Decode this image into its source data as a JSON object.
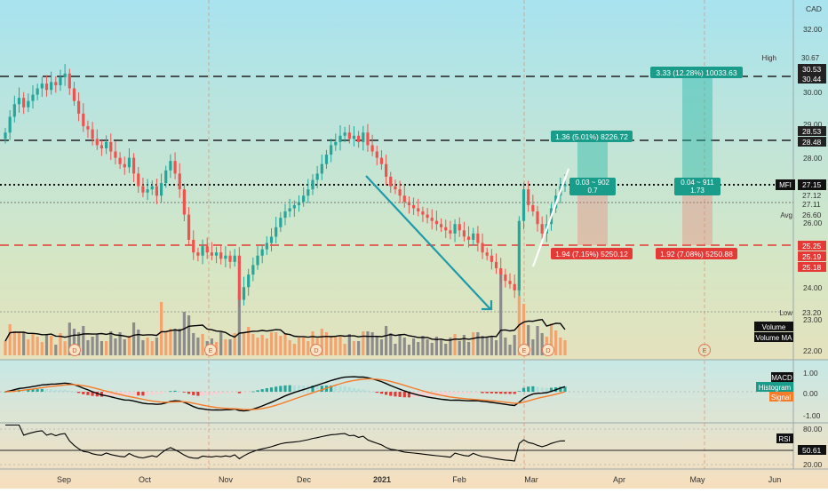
{
  "chart_data": [
    {
      "type": "candlestick",
      "currency": "CAD",
      "y_axis_ticks": [
        "32.00",
        "30.00",
        "29.00",
        "28.00",
        "26.00",
        "24.00",
        "23.00",
        "22.00"
      ],
      "x_axis_ticks": [
        "Sep",
        "Oct",
        "Nov",
        "Dec",
        "2021",
        "Feb",
        "Mar",
        "Apr",
        "May",
        "Jun"
      ],
      "ylim": [
        21.6,
        33.0
      ],
      "closes": [
        28.8,
        29.3,
        29.7,
        29.9,
        29.6,
        29.8,
        30.0,
        30.2,
        30.35,
        30.15,
        30.4,
        30.3,
        30.55,
        30.67,
        30.2,
        29.8,
        29.4,
        29.0,
        28.9,
        28.6,
        28.4,
        28.3,
        28.5,
        28.2,
        28.0,
        27.8,
        27.7,
        28.0,
        27.5,
        27.1,
        26.9,
        27.0,
        27.1,
        26.8,
        27.2,
        27.6,
        27.9,
        27.5,
        27.0,
        26.2,
        25.4,
        25.0,
        24.9,
        25.2,
        25.0,
        24.9,
        25.0,
        24.8,
        24.9,
        24.7,
        24.9,
        23.5,
        23.9,
        24.3,
        24.6,
        24.9,
        25.1,
        25.3,
        25.5,
        25.8,
        26.1,
        26.3,
        26.4,
        26.5,
        26.6,
        26.8,
        27.0,
        27.3,
        27.5,
        27.8,
        28.1,
        28.4,
        28.5,
        28.7,
        28.8,
        28.6,
        28.7,
        28.5,
        28.8,
        28.4,
        28.2,
        28.0,
        27.8,
        27.4,
        27.1,
        27.0,
        26.8,
        26.6,
        26.5,
        26.4,
        26.3,
        26.2,
        26.1,
        26.0,
        25.9,
        25.8,
        25.7,
        25.6,
        25.9,
        25.7,
        25.5,
        25.4,
        25.6,
        25.3,
        25.0,
        24.9,
        24.7,
        24.5,
        24.3,
        24.1,
        24.0,
        23.8,
        26.0,
        27.0,
        26.5,
        26.3,
        25.9,
        25.6,
        25.9,
        26.4,
        26.8,
        27.1,
        27.15
      ],
      "events": [
        "D",
        "E",
        "D",
        "E",
        "D",
        "E"
      ],
      "labels": {
        "high": "High",
        "high_val": "30.67",
        "low": "Low",
        "low_val": "23.20",
        "avg": "Avg",
        "avg_val": "26.60",
        "ticker": "MFI",
        "last_price": "27.15",
        "price_27_12": "27.12",
        "price_27_11": "27.11",
        "level_30_53": "30.53",
        "level_30_44": "30.44",
        "level_28_53": "28.53",
        "level_28_48": "28.48",
        "level_25_25": "25.25",
        "level_25_19": "25.19",
        "level_25_18": "25.18"
      },
      "positions": [
        {
          "target_label": "1.36 (5.01%) 8226.72",
          "mid_line1": "0.03 ~ 902",
          "mid_line2": "0.7",
          "stop_label": "1.94 (7.15%) 5250.12"
        },
        {
          "target_label": "3.33 (12.28%) 10033.63",
          "mid_line1": "0.04 ~ 911",
          "mid_line2": "1.73",
          "stop_label": "1.92 (7.08%) 5250.88"
        }
      ],
      "volume_legend": [
        "Volume",
        "Volume MA"
      ]
    },
    {
      "type": "line",
      "name": "MACD",
      "y_axis_ticks": [
        "1.00",
        "0.00",
        "-1.00"
      ],
      "legend": [
        "MACD",
        "Histogram",
        "Signal"
      ]
    },
    {
      "type": "line",
      "name": "RSI",
      "y_axis_ticks": [
        "80.00",
        "20.00"
      ],
      "rsi_value": "50.61"
    }
  ],
  "colors": {
    "up": "#26a69a",
    "down": "#ef5350",
    "up_volume": "#f4a36e",
    "down_volume": "#8c8c8c",
    "target_zone": "#2ab7a6",
    "stop_zone": "#ef7a72",
    "macd": "#000000",
    "signal": "#f57c2a",
    "price_line": "#000000",
    "red_line": "#e53935",
    "trend_arrow": "#1e9aa9"
  }
}
